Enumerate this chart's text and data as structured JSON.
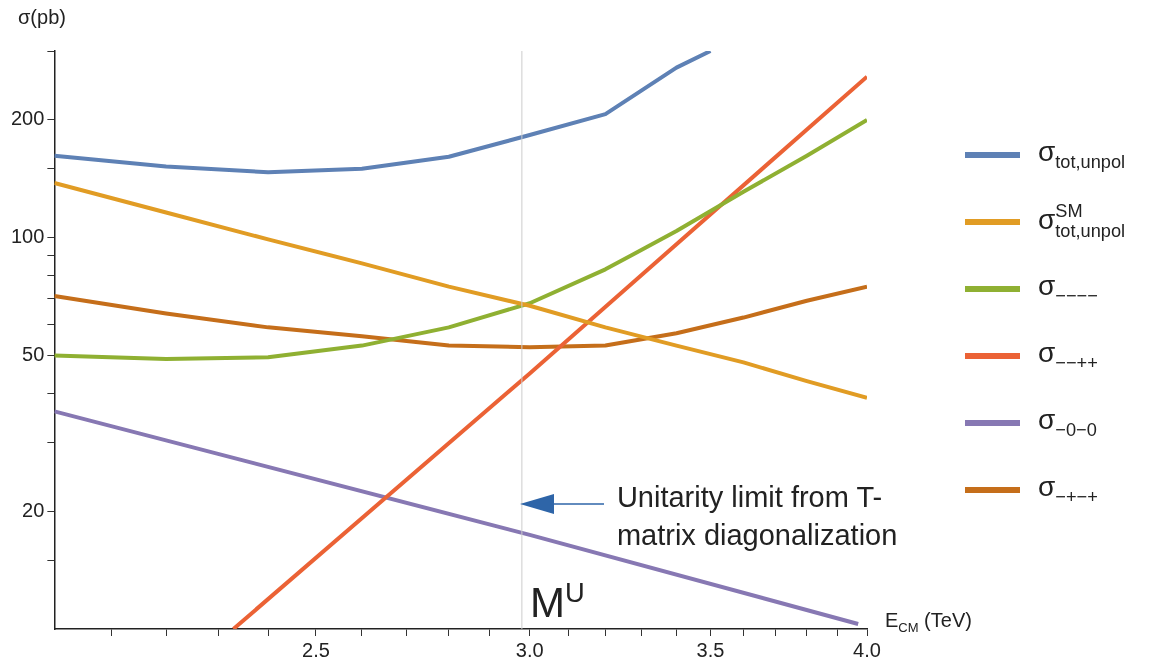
{
  "chart_data": {
    "type": "line",
    "ylabel": "σ(pb)",
    "xlabel": "E$_{CM}$ (TeV)",
    "log": "xy",
    "grid": false,
    "legend": "right",
    "marker": "none",
    "line_style": "solid",
    "xlim": [
      2.0,
      4.0
    ],
    "xticks": [
      {
        "value": 2.1,
        "label": null
      },
      {
        "value": 2.2,
        "label": null
      },
      {
        "value": 2.3,
        "label": null
      },
      {
        "value": 2.4,
        "label": null
      },
      {
        "value": 2.5,
        "label": "2.5"
      },
      {
        "value": 2.6,
        "label": null
      },
      {
        "value": 2.7,
        "label": null
      },
      {
        "value": 2.8,
        "label": null
      },
      {
        "value": 2.9,
        "label": null
      },
      {
        "value": 3.0,
        "label": "3.0"
      },
      {
        "value": 3.1,
        "label": null
      },
      {
        "value": 3.2,
        "label": null
      },
      {
        "value": 3.3,
        "label": null
      },
      {
        "value": 3.4,
        "label": null
      },
      {
        "value": 3.5,
        "label": "3.5"
      },
      {
        "value": 3.6,
        "label": null
      },
      {
        "value": 3.7,
        "label": null
      },
      {
        "value": 3.8,
        "label": null
      },
      {
        "value": 3.9,
        "label": null
      },
      {
        "value": 4.0,
        "label": "4.0"
      }
    ],
    "ylim": [
      10,
      300
    ],
    "yticks": [
      {
        "value": 15,
        "label": null
      },
      20,
      {
        "value": 30,
        "label": null
      },
      {
        "value": 40,
        "label": null
      },
      50,
      {
        "value": 60,
        "label": null
      },
      {
        "value": 70,
        "label": null
      },
      {
        "value": 80,
        "label": null
      },
      {
        "value": 90,
        "label": null
      },
      100,
      {
        "value": 150,
        "label": null
      },
      200,
      {
        "value": 300,
        "label": null
      }
    ],
    "series": [
      {
        "name": "σ$_{tot,unpol}$",
        "color": "#5e81b5",
        "x": [
          2.0,
          2.2,
          2.4,
          2.6,
          2.8,
          3.0,
          3.2,
          3.4,
          3.5
        ],
        "values": [
          162,
          152,
          147,
          150,
          161,
          183,
          207,
          272,
          300
        ]
      },
      {
        "name": "σ$^{SM}$$_{tot,unpol}$",
        "color": "#e19c24",
        "x": [
          2.0,
          2.2,
          2.4,
          2.6,
          2.8,
          3.0,
          3.2,
          3.4,
          3.6,
          3.8,
          4.0
        ],
        "values": [
          138,
          116,
          99,
          86,
          75,
          67,
          59,
          53,
          48,
          43,
          39
        ]
      },
      {
        "name": "σ$_{−−−−}$",
        "color": "#8fb032",
        "x": [
          2.0,
          2.2,
          2.4,
          2.6,
          2.8,
          3.0,
          3.2,
          3.4,
          3.6,
          3.8,
          4.0
        ],
        "values": [
          50,
          49,
          49.5,
          53,
          59,
          68,
          83,
          104,
          131,
          162,
          200
        ]
      },
      {
        "name": "σ$_{−−++}$",
        "color": "#eb6235",
        "x": [
          2.33,
          3.0,
          4.0
        ],
        "values": [
          10,
          45,
          258
        ]
      },
      {
        "name": "σ$_{−0−0}$",
        "color": "#8778b3",
        "x": [
          2.0,
          3.0,
          3.97
        ],
        "values": [
          36,
          17.4,
          10.3
        ]
      },
      {
        "name": "σ$_{−+−+}$",
        "color": "#c56e1a",
        "x": [
          2.0,
          2.2,
          2.4,
          2.6,
          2.8,
          3.0,
          3.2,
          3.4,
          3.6,
          3.8,
          4.0
        ],
        "values": [
          71,
          64,
          59,
          56,
          53,
          52.5,
          53,
          57,
          62.5,
          69,
          75
        ]
      }
    ],
    "ref_lines": [
      {
        "axis": "x",
        "value": 2.98,
        "label": "M$^{U}$",
        "color": "#cccccc"
      }
    ],
    "annotations": [
      "Unitarity limit from T-matrix diagonalization"
    ]
  }
}
